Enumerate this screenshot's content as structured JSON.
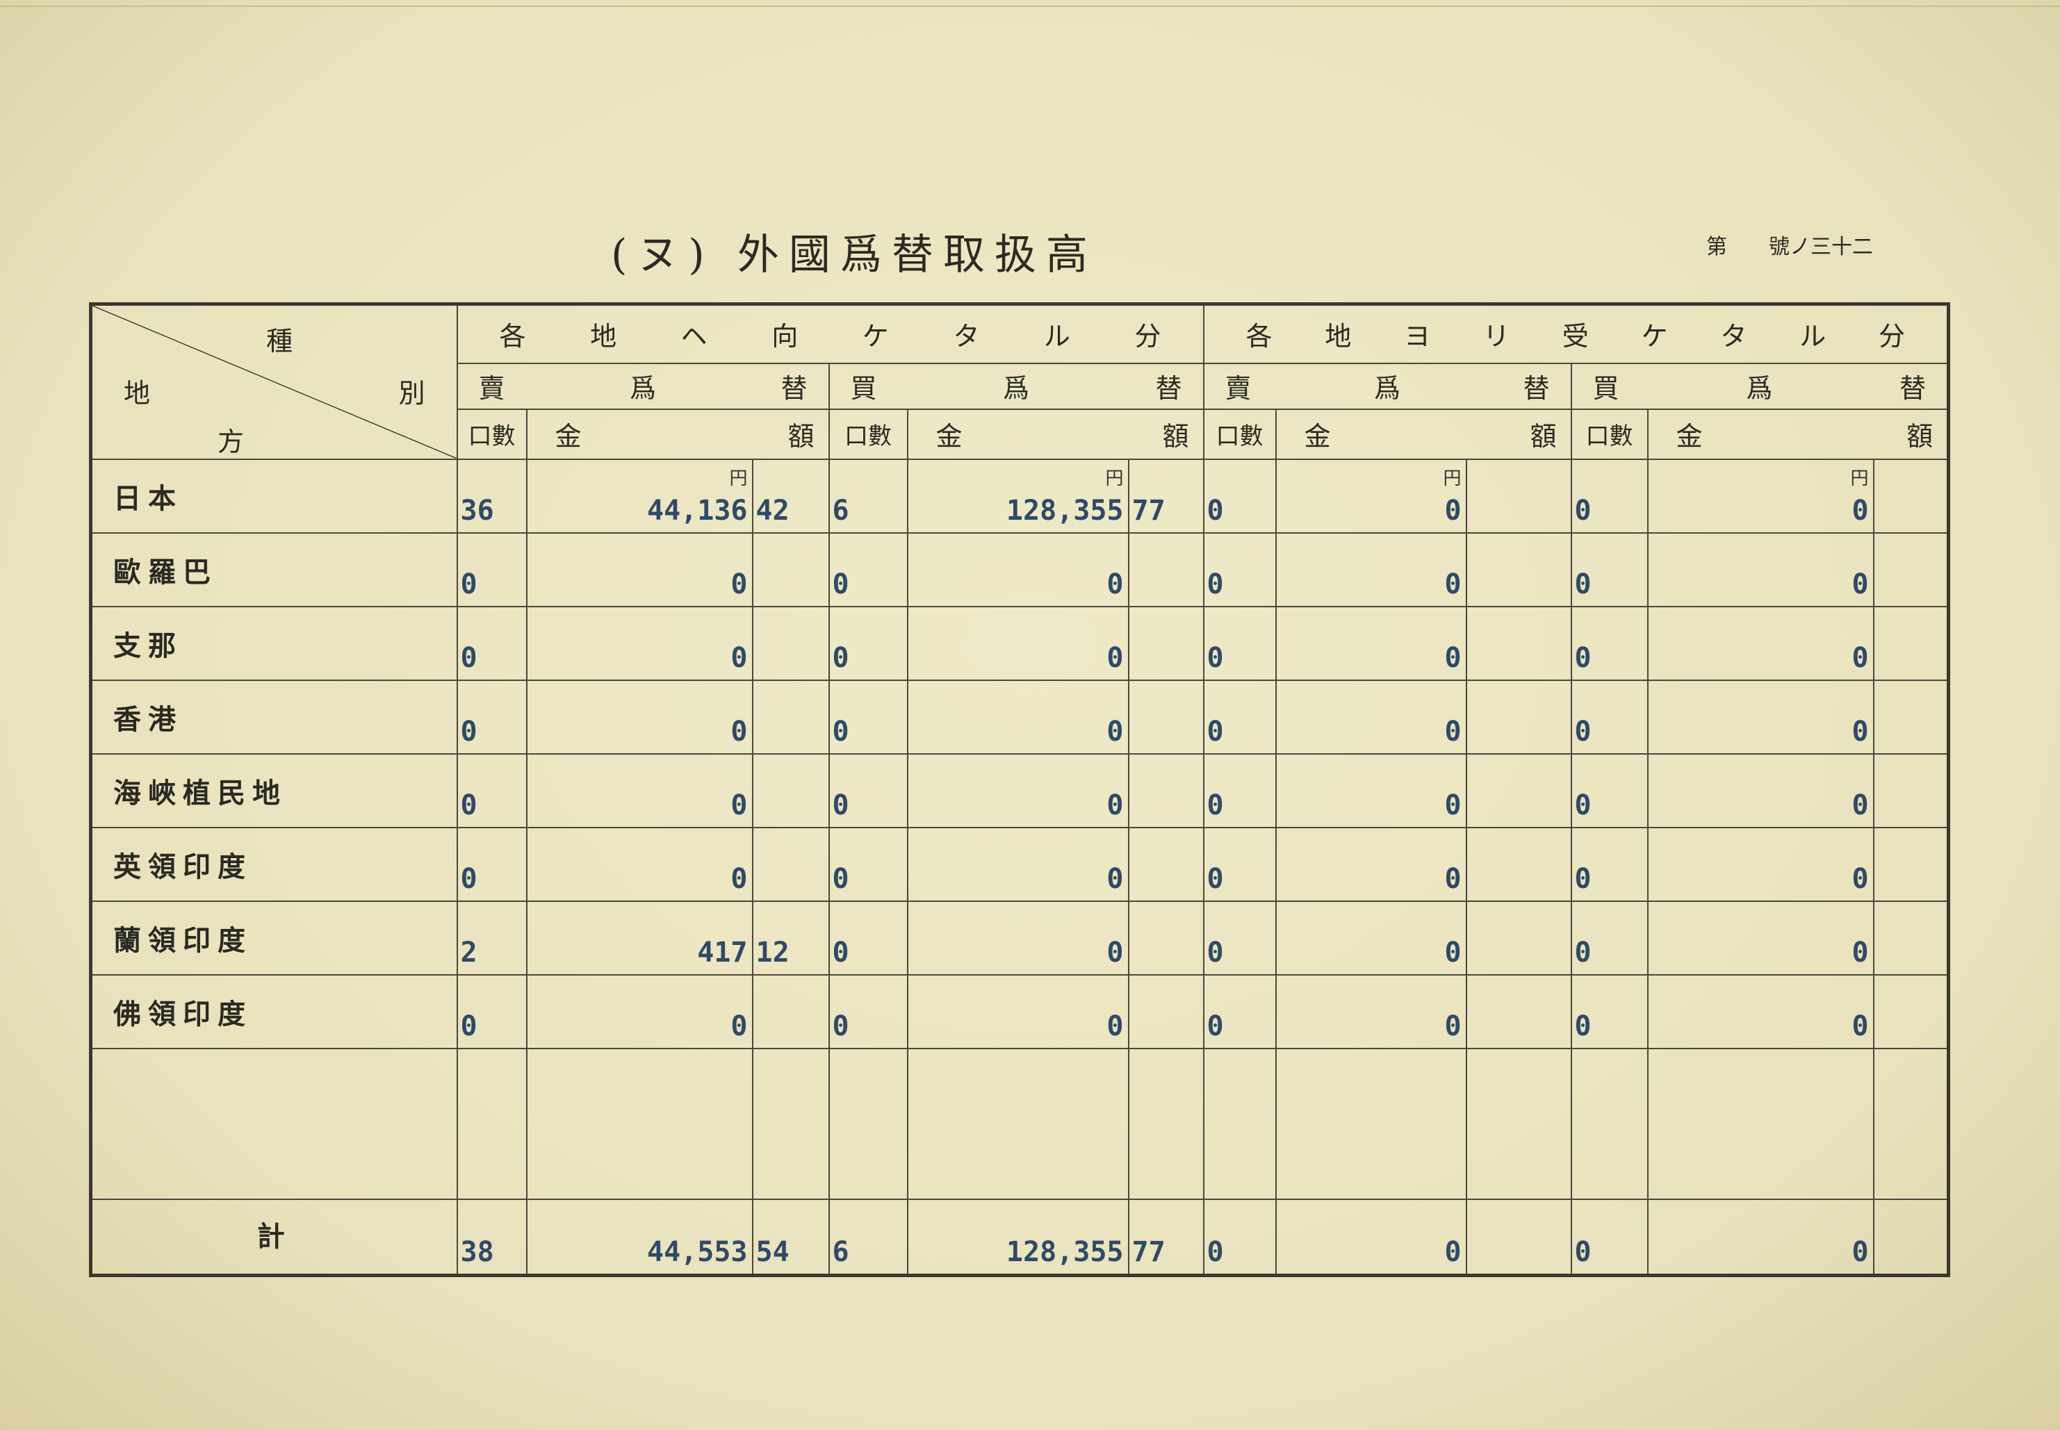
{
  "title": "(ヌ) 外國爲替取扱高",
  "page_number": {
    "prefix": "第",
    "number": "號ノ三十二"
  },
  "table": {
    "corner": {
      "top": "種",
      "left": "地",
      "right": "別",
      "bottom": "方"
    },
    "groups": [
      "各地ヘ向ケタル分",
      "各地ヨリ受ケタル分"
    ],
    "subgroups": [
      "賣爲替",
      "買爲替",
      "賣爲替",
      "買爲替"
    ],
    "count_label": "口數",
    "amount_label": {
      "left": "金",
      "right": "額"
    },
    "currency_unit": "円",
    "rows": [
      {
        "name": "日本",
        "v": [
          "36",
          "44,136",
          "42",
          "6",
          "128,355",
          "77",
          "0",
          "0",
          "",
          "0",
          "0",
          ""
        ]
      },
      {
        "name": "歐羅巴",
        "v": [
          "0",
          "0",
          "",
          "0",
          "0",
          "",
          "0",
          "0",
          "",
          "0",
          "0",
          ""
        ]
      },
      {
        "name": "支那",
        "v": [
          "0",
          "0",
          "",
          "0",
          "0",
          "",
          "0",
          "0",
          "",
          "0",
          "0",
          ""
        ]
      },
      {
        "name": "香港",
        "v": [
          "0",
          "0",
          "",
          "0",
          "0",
          "",
          "0",
          "0",
          "",
          "0",
          "0",
          ""
        ]
      },
      {
        "name": "海峽植民地",
        "v": [
          "0",
          "0",
          "",
          "0",
          "0",
          "",
          "0",
          "0",
          "",
          "0",
          "0",
          ""
        ]
      },
      {
        "name": "英領印度",
        "v": [
          "0",
          "0",
          "",
          "0",
          "0",
          "",
          "0",
          "0",
          "",
          "0",
          "0",
          ""
        ]
      },
      {
        "name": "蘭領印度",
        "v": [
          "2",
          "417",
          "12",
          "0",
          "0",
          "",
          "0",
          "0",
          "",
          "0",
          "0",
          ""
        ]
      },
      {
        "name": "佛領印度",
        "v": [
          "0",
          "0",
          "",
          "0",
          "0",
          "",
          "0",
          "0",
          "",
          "0",
          "0",
          ""
        ]
      }
    ],
    "total": {
      "name": "計",
      "v": [
        "38",
        "44,553",
        "54",
        "6",
        "128,355",
        "77",
        "0",
        "0",
        "",
        "0",
        "0",
        ""
      ]
    }
  }
}
